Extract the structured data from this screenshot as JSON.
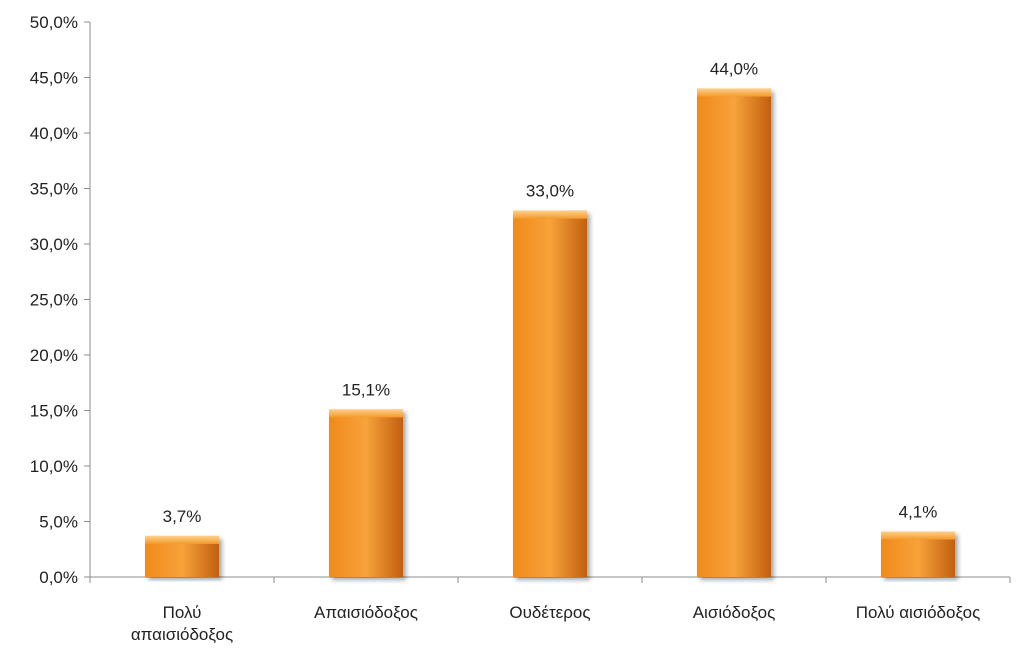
{
  "chart_data": {
    "type": "bar",
    "categories": [
      [
        "Πολύ",
        "απαισιόδοξος"
      ],
      [
        "Απαισιόδοξος"
      ],
      [
        "Ουδέτερος"
      ],
      [
        "Αισιόδοξος"
      ],
      [
        "Πολύ αισιόδοξος"
      ]
    ],
    "values": [
      3.7,
      15.1,
      33.0,
      44.0,
      4.1
    ],
    "data_labels": [
      "3,7%",
      "15,1%",
      "33,0%",
      "44,0%",
      "4,1%"
    ],
    "ylim": [
      0,
      50
    ],
    "y_ticks": [
      0,
      5,
      10,
      15,
      20,
      25,
      30,
      35,
      40,
      45,
      50
    ],
    "y_tick_labels": [
      "0,0%",
      "5,0%",
      "10,0%",
      "15,0%",
      "20,0%",
      "25,0%",
      "30,0%",
      "35,0%",
      "40,0%",
      "45,0%",
      "50,0%"
    ],
    "title": "",
    "xlabel": "",
    "ylabel": "",
    "grid": false,
    "legend": "none",
    "colors": {
      "bar_light": "#f7a23a",
      "bar_mid": "#f08a1c",
      "bar_dark": "#c2600f",
      "axis": "#8c8c8c"
    }
  }
}
